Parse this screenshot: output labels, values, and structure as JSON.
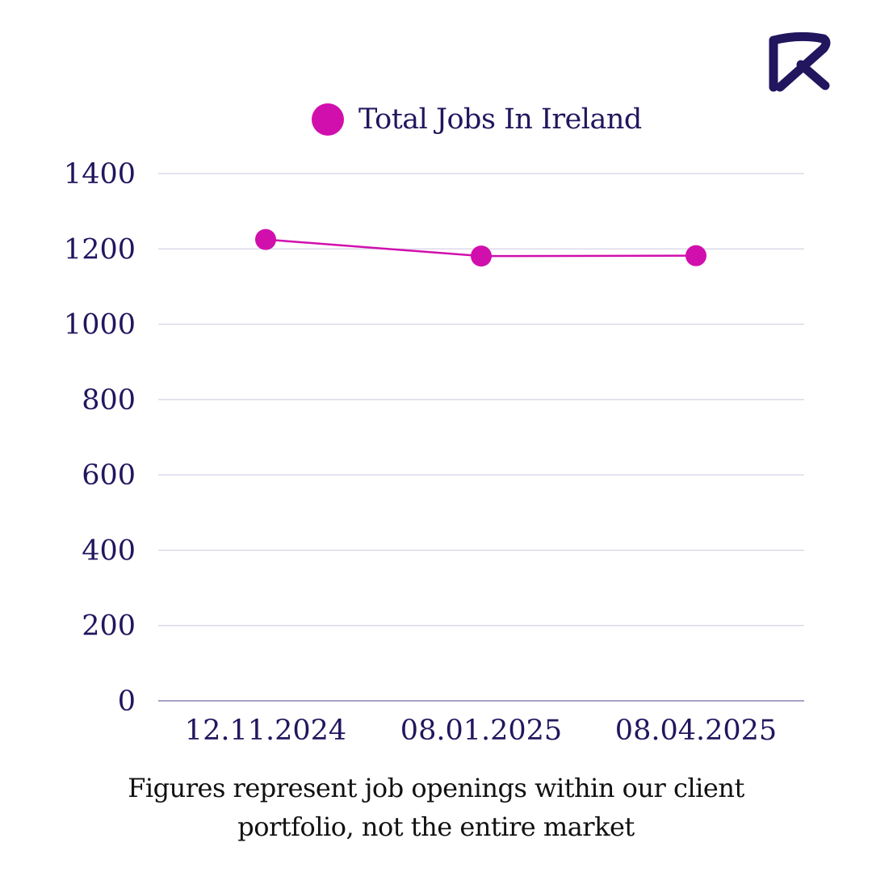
{
  "brand": {
    "logo_icon": "brand-logo-icon",
    "colors": {
      "primary": "#22165e",
      "accent": "#d10fad",
      "grid": "#d4d2e6",
      "axis": "#8a84b3"
    }
  },
  "chart_data": {
    "type": "line",
    "categories": [
      "12.11.2024",
      "08.01.2025",
      "08.04.2025"
    ],
    "series": [
      {
        "name": "Total Jobs In Ireland",
        "values": [
          1225,
          1181,
          1182
        ],
        "color": "#d10fad"
      }
    ],
    "ylim": [
      0,
      1400
    ],
    "yticks": [
      0,
      200,
      400,
      600,
      800,
      1000,
      1200,
      1400
    ],
    "grid": true,
    "legend_position": "top-center"
  },
  "footnote": "Figures represent job openings within our client portfolio, not the entire market"
}
